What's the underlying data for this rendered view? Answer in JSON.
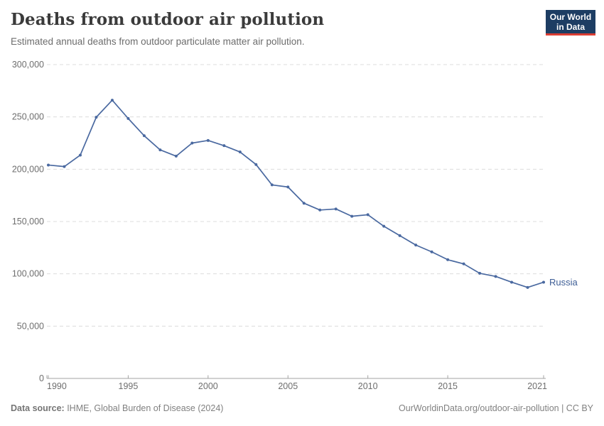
{
  "header": {
    "title": "Deaths from outdoor air pollution",
    "subtitle": "Estimated annual deaths from outdoor particulate matter air pollution.",
    "logo": {
      "line1": "Our World",
      "line2": "in Data"
    }
  },
  "chart_data": {
    "type": "line",
    "title": "Deaths from outdoor air pollution",
    "xlabel": "",
    "ylabel": "",
    "x": [
      1990,
      1991,
      1992,
      1993,
      1994,
      1995,
      1996,
      1997,
      1998,
      1999,
      2000,
      2001,
      2002,
      2003,
      2004,
      2005,
      2006,
      2007,
      2008,
      2009,
      2010,
      2011,
      2012,
      2013,
      2014,
      2015,
      2016,
      2017,
      2018,
      2019,
      2020,
      2021
    ],
    "series": [
      {
        "name": "Russia",
        "values": [
          204000,
          202500,
          213500,
          249700,
          266000,
          248500,
          232000,
          218500,
          212500,
          225000,
          227500,
          222500,
          216500,
          204500,
          185000,
          183000,
          167500,
          161000,
          162000,
          155000,
          156500,
          145500,
          136500,
          127500,
          121000,
          113500,
          109500,
          100500,
          97500,
          92000,
          87000,
          92000
        ]
      }
    ],
    "ylim": [
      0,
      300000
    ],
    "yticks": [
      0,
      50000,
      100000,
      150000,
      200000,
      250000,
      300000
    ],
    "ytick_labels": [
      "0",
      "50,000",
      "100,000",
      "150,000",
      "200,000",
      "250,000",
      "300,000"
    ],
    "xticks": [
      1990,
      1995,
      2000,
      2005,
      2010,
      2015,
      2021
    ],
    "xtick_labels": [
      "1990",
      "1995",
      "2000",
      "2005",
      "2010",
      "2015",
      "2021"
    ],
    "grid": true,
    "legend_position": "end-of-line"
  },
  "colors": {
    "line": "#4a69a0",
    "series_label": "#3e5e96",
    "grid": "#dcdcdc",
    "axis": "#a3a3a3",
    "tick_text": "#6e6e6e",
    "logo_bg": "#1d3d63",
    "logo_accent": "#da3d33"
  },
  "footer": {
    "source_label": "Data source:",
    "source_value": " IHME, Global Burden of Disease (2024)",
    "link": "OurWorldinData.org/outdoor-air-pollution | CC BY"
  }
}
